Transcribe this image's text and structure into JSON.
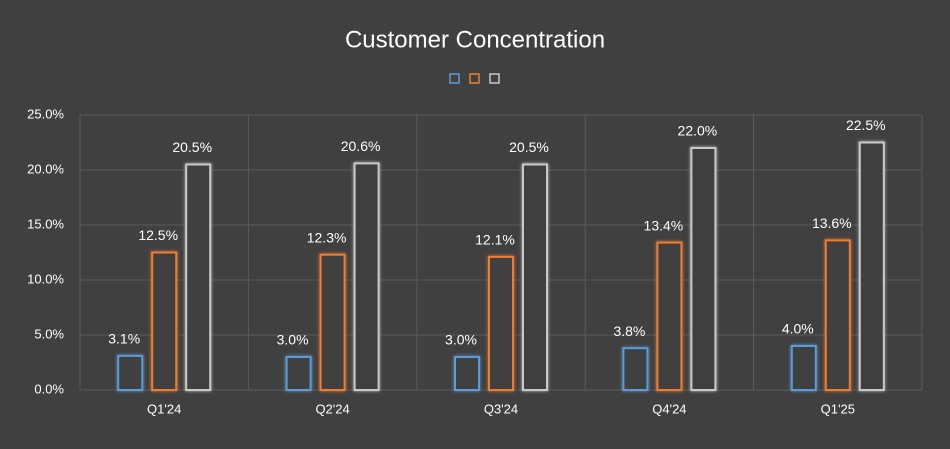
{
  "chart_data": {
    "type": "bar",
    "title": "Customer Concentration",
    "categories": [
      "Q1'24",
      "Q2'24",
      "Q3'24",
      "Q4'24",
      "Q1'25"
    ],
    "series": [
      {
        "color": "#5b9bd5",
        "values": [
          3.1,
          3.0,
          3.0,
          3.8,
          4.0
        ],
        "value_labels": [
          "3.1%",
          "3.0%",
          "3.0%",
          "3.8%",
          "4.0%"
        ]
      },
      {
        "color": "#ed7d31",
        "values": [
          12.5,
          12.3,
          12.1,
          13.4,
          13.6
        ],
        "value_labels": [
          "12.5%",
          "12.3%",
          "12.1%",
          "13.4%",
          "13.6%"
        ]
      },
      {
        "color": "#c9c9c9",
        "values": [
          20.5,
          20.6,
          20.5,
          22.0,
          22.5
        ],
        "value_labels": [
          "20.5%",
          "20.6%",
          "20.5%",
          "22.0%",
          "22.5%"
        ]
      }
    ],
    "ylim": [
      0,
      25
    ],
    "yticks": [
      {
        "value": 0,
        "label": "0.0%"
      },
      {
        "value": 5,
        "label": "5.0%"
      },
      {
        "value": 10,
        "label": "10.0%"
      },
      {
        "value": 15,
        "label": "15.0%"
      },
      {
        "value": 20,
        "label": "20.0%"
      },
      {
        "value": 25,
        "label": "25.0%"
      }
    ],
    "grid": true
  }
}
